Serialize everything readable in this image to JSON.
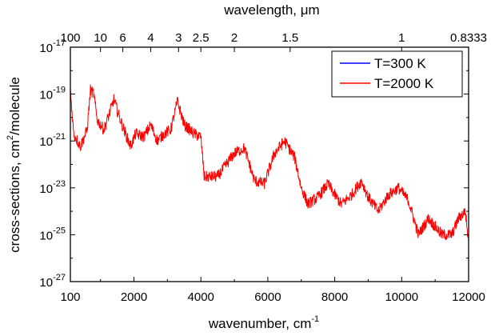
{
  "chart_data": {
    "type": "line",
    "xlabel": "wavenumber, cm",
    "xlabel_sup": "-1",
    "ylabel": "cross-sections, cm",
    "ylabel_sup": "2",
    "ylabel_tail": "/molecule",
    "top_label": "wavelength, μm",
    "xlim": [
      100,
      12000
    ],
    "ylim": [
      1e-27,
      1e-17
    ],
    "y_scale": "log",
    "x_ticks": [
      "100",
      "2000",
      "4000",
      "6000",
      "8000",
      "10000",
      "12000"
    ],
    "x_tick_values": [
      100,
      2000,
      4000,
      6000,
      8000,
      10000,
      12000
    ],
    "y_ticks": [
      {
        "base": "10",
        "exp": "-27",
        "value": 1e-27
      },
      {
        "base": "10",
        "exp": "-25",
        "value": 1e-25
      },
      {
        "base": "10",
        "exp": "-23",
        "value": 1e-23
      },
      {
        "base": "10",
        "exp": "-21",
        "value": 1e-21
      },
      {
        "base": "10",
        "exp": "-19",
        "value": 1e-19
      },
      {
        "base": "10",
        "exp": "-17",
        "value": 1e-17
      }
    ],
    "top_ticks": [
      {
        "label": "100",
        "wavenumber": 100
      },
      {
        "label": "10",
        "wavenumber": 1000
      },
      {
        "label": "6",
        "wavenumber": 1667
      },
      {
        "label": "4",
        "wavenumber": 2500
      },
      {
        "label": "3",
        "wavenumber": 3333
      },
      {
        "label": "2.5",
        "wavenumber": 4000
      },
      {
        "label": "2",
        "wavenumber": 5000
      },
      {
        "label": "1.5",
        "wavenumber": 6667
      },
      {
        "label": "1",
        "wavenumber": 10000
      },
      {
        "label": "0.8333",
        "wavenumber": 12000
      }
    ],
    "legend_position": "top-right",
    "series": [
      {
        "name": "T=300 K",
        "color": "#0000ff",
        "bands": [
          {
            "center": 150,
            "peak": 3e-19,
            "width": 120
          },
          {
            "center": 700,
            "peak": 2e-19,
            "width": 200
          },
          {
            "center": 1300,
            "peak": 3e-20,
            "width": 180
          },
          {
            "center": 2100,
            "peak": 2e-21,
            "width": 150
          },
          {
            "center": 2500,
            "peak": 5e-21,
            "width": 160
          },
          {
            "center": 2900,
            "peak": 2e-21,
            "width": 160
          },
          {
            "center": 3300,
            "peak": 2e-19,
            "width": 170
          },
          {
            "center": 3950,
            "peak": 8e-23,
            "width": 150
          },
          {
            "center": 4700,
            "peak": 1e-23,
            "width": 150
          },
          {
            "center": 5400,
            "peak": 2e-22,
            "width": 170
          },
          {
            "center": 5950,
            "peak": 1e-22,
            "width": 160
          },
          {
            "center": 6500,
            "peak": 1e-20,
            "width": 180
          },
          {
            "center": 7500,
            "peak": 1e-23,
            "width": 160
          },
          {
            "center": 8250,
            "peak": 1e-22,
            "width": 170
          },
          {
            "center": 8750,
            "peak": 1e-22,
            "width": 170
          },
          {
            "center": 9500,
            "peak": 1e-22,
            "width": 170
          },
          {
            "center": 10400,
            "peak": 3e-24,
            "width": 150
          },
          {
            "center": 11700,
            "peak": 1e-24,
            "width": 120
          }
        ]
      },
      {
        "name": "T=2000 K",
        "color": "#ff0000",
        "points": [
          [
            100,
            1.5e-19
          ],
          [
            200,
            2e-21
          ],
          [
            400,
            6e-22
          ],
          [
            600,
            3e-21
          ],
          [
            700,
            1.5e-19
          ],
          [
            800,
            1e-19
          ],
          [
            900,
            8e-21
          ],
          [
            1100,
            3e-21
          ],
          [
            1300,
            2e-20
          ],
          [
            1400,
            6e-20
          ],
          [
            1500,
            2e-20
          ],
          [
            1700,
            3e-21
          ],
          [
            1900,
            6e-22
          ],
          [
            2050,
            2e-21
          ],
          [
            2300,
            1.5e-21
          ],
          [
            2500,
            5e-21
          ],
          [
            2700,
            1e-21
          ],
          [
            2900,
            2e-21
          ],
          [
            3100,
            3e-21
          ],
          [
            3300,
            5e-20
          ],
          [
            3500,
            5e-21
          ],
          [
            3800,
            2e-21
          ],
          [
            4000,
            1.5e-21
          ],
          [
            4100,
            3e-23
          ],
          [
            4500,
            3e-23
          ],
          [
            5000,
            3e-22
          ],
          [
            5300,
            5e-22
          ],
          [
            5600,
            2e-23
          ],
          [
            5900,
            1.5e-23
          ],
          [
            6200,
            3e-22
          ],
          [
            6500,
            1e-21
          ],
          [
            6800,
            2e-22
          ],
          [
            7000,
            1e-23
          ],
          [
            7200,
            2e-24
          ],
          [
            7500,
            4e-24
          ],
          [
            7800,
            1.5e-23
          ],
          [
            8000,
            5e-24
          ],
          [
            8200,
            2e-24
          ],
          [
            8500,
            5e-24
          ],
          [
            8800,
            2e-23
          ],
          [
            9000,
            4e-24
          ],
          [
            9300,
            1e-24
          ],
          [
            9600,
            5e-24
          ],
          [
            9900,
            1e-23
          ],
          [
            10200,
            3e-24
          ],
          [
            10500,
            1e-25
          ],
          [
            10800,
            5e-25
          ],
          [
            11200,
            1e-25
          ],
          [
            11500,
            1e-25
          ],
          [
            11700,
            5e-25
          ],
          [
            11900,
            1e-24
          ],
          [
            12000,
            5e-26
          ]
        ]
      }
    ]
  }
}
